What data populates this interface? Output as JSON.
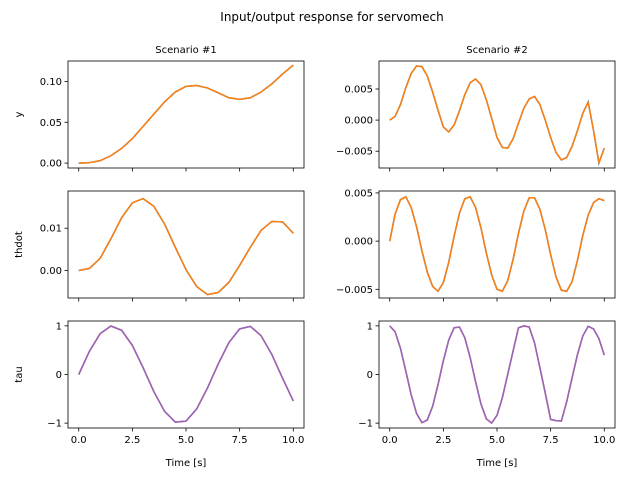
{
  "suptitle": "Input/output response for servomech",
  "colors": {
    "output": "#ff7f0e",
    "output_under": "#1f77b4",
    "input": "#9467bd",
    "input_under": "#d62728",
    "axes": "#000000"
  },
  "chart_data": [
    {
      "type": "line",
      "title": "Scenario #1",
      "xlabel": "",
      "ylabel": "y",
      "xlim": [
        -0.5,
        10.5
      ],
      "ylim": [
        -0.006,
        0.125
      ],
      "xticks": [
        0,
        2.5,
        5,
        7.5,
        10
      ],
      "xticklabels": [
        "",
        "",
        "",
        "",
        ""
      ],
      "yticks": [
        0,
        0.05,
        0.1
      ],
      "yticklabels": [
        "0.00",
        "0.05",
        "0.10"
      ],
      "series": [
        {
          "values": {
            "x": [
              0,
              0.5,
              1,
              1.5,
              2,
              2.5,
              3,
              3.5,
              4,
              4.5,
              5,
              5.5,
              6,
              6.5,
              7,
              7.5,
              8,
              8.5,
              9,
              9.5,
              10
            ],
            "y": [
              0,
              0.0005,
              0.003,
              0.009,
              0.018,
              0.03,
              0.045,
              0.06,
              0.075,
              0.087,
              0.094,
              0.095,
              0.092,
              0.086,
              0.08,
              0.078,
              0.08,
              0.087,
              0.097,
              0.109,
              0.12
            ]
          }
        }
      ]
    },
    {
      "type": "line",
      "title": "Scenario #2",
      "xlabel": "",
      "ylabel": "",
      "xlim": [
        -0.5,
        10.5
      ],
      "ylim": [
        -0.0077,
        0.0095
      ],
      "xticks": [
        0,
        2.5,
        5,
        7.5,
        10
      ],
      "xticklabels": [
        "",
        "",
        "",
        "",
        ""
      ],
      "yticks": [
        -0.005,
        0,
        0.005
      ],
      "yticklabels": [
        "−0.005",
        "0.000",
        "0.005"
      ],
      "series": [
        {
          "values": {
            "x": [
              0,
              0.25,
              0.5,
              0.75,
              1,
              1.25,
              1.5,
              1.75,
              2,
              2.25,
              2.5,
              2.75,
              3,
              3.25,
              3.5,
              3.75,
              4,
              4.25,
              4.5,
              4.75,
              5,
              5.25,
              5.5,
              5.75,
              6,
              6.25,
              6.5,
              6.75,
              7,
              7.25,
              7.5,
              7.75,
              8,
              8.25,
              8.5,
              8.75,
              9,
              9.25,
              9.5,
              9.75,
              10
            ],
            "y": [
              0,
              0.0006,
              0.0025,
              0.0052,
              0.0075,
              0.0087,
              0.0086,
              0.0071,
              0.0045,
              0.0016,
              -0.0011,
              -0.0019,
              -0.0008,
              0.0015,
              0.0041,
              0.006,
              0.0066,
              0.0057,
              0.0033,
              0.0003,
              -0.0028,
              -0.0044,
              -0.0045,
              -0.003,
              -0.0005,
              0.0019,
              0.0034,
              0.0038,
              0.0025,
              0,
              -0.0028,
              -0.0052,
              -0.0064,
              -0.006,
              -0.0042,
              -0.0017,
              0.0011,
              0.0029,
              -0.0017,
              -0.0069,
              -0.0045
            ]
          }
        }
      ]
    },
    {
      "type": "line",
      "title": "",
      "xlabel": "",
      "ylabel": "thdot",
      "xlim": [
        -0.5,
        10.5
      ],
      "ylim": [
        -0.0065,
        0.0188
      ],
      "xticks": [
        0,
        2.5,
        5,
        7.5,
        10
      ],
      "xticklabels": [
        "",
        "",
        "",
        "",
        ""
      ],
      "yticks": [
        0,
        0.01
      ],
      "yticklabels": [
        "0.00",
        "0.01"
      ],
      "series": [
        {
          "values": {
            "x": [
              0,
              0.5,
              1,
              1.5,
              2,
              2.5,
              3,
              3.5,
              4,
              4.5,
              5,
              5.5,
              6,
              6.5,
              7,
              7.5,
              8,
              8.5,
              9,
              9.5,
              10
            ],
            "y": [
              0,
              0.0005,
              0.0029,
              0.0075,
              0.0125,
              0.016,
              0.017,
              0.0152,
              0.011,
              0.0055,
              0.0002,
              -0.0038,
              -0.0057,
              -0.0052,
              -0.0028,
              0.0012,
              0.0055,
              0.0095,
              0.0116,
              0.0115,
              0.0088
            ]
          }
        }
      ]
    },
    {
      "type": "line",
      "title": "",
      "xlabel": "",
      "ylabel": "",
      "xlim": [
        -0.5,
        10.5
      ],
      "ylim": [
        -0.0059,
        0.0052
      ],
      "xticks": [
        0,
        2.5,
        5,
        7.5,
        10
      ],
      "xticklabels": [
        "",
        "",
        "",
        "",
        ""
      ],
      "yticks": [
        -0.005,
        0,
        0.005
      ],
      "yticklabels": [
        "−0.005",
        "0.000",
        "0.005"
      ],
      "series": [
        {
          "values": {
            "x": [
              0,
              0.25,
              0.5,
              0.75,
              1,
              1.25,
              1.5,
              1.75,
              2,
              2.25,
              2.5,
              2.75,
              3,
              3.25,
              3.5,
              3.75,
              4,
              4.25,
              4.5,
              4.75,
              5,
              5.25,
              5.5,
              5.75,
              6,
              6.25,
              6.5,
              6.75,
              7,
              7.25,
              7.5,
              7.75,
              8,
              8.25,
              8.5,
              8.75,
              9,
              9.25,
              9.5,
              9.75,
              10
            ],
            "y": [
              0,
              0.0028,
              0.0043,
              0.0046,
              0.0035,
              0.0015,
              -0.001,
              -0.0032,
              -0.0047,
              -0.0052,
              -0.0043,
              -0.0022,
              0.0005,
              0.0029,
              0.0044,
              0.0046,
              0.0035,
              0.0014,
              -0.0012,
              -0.0035,
              -0.005,
              -0.0052,
              -0.0041,
              -0.0019,
              0.0008,
              0.0031,
              0.0045,
              0.0045,
              0.0033,
              0.0012,
              -0.0014,
              -0.0037,
              -0.0051,
              -0.0052,
              -0.0042,
              -0.002,
              0.0006,
              0.0027,
              0.004,
              0.0044,
              0.0042
            ]
          }
        }
      ]
    },
    {
      "type": "line",
      "title": "",
      "xlabel": "Time [s]",
      "ylabel": "tau",
      "xlim": [
        -0.5,
        10.5
      ],
      "ylim": [
        -1.1,
        1.1
      ],
      "xticks": [
        0,
        2.5,
        5,
        7.5,
        10
      ],
      "xticklabels": [
        "0.0",
        "2.5",
        "5.0",
        "7.5",
        "10.0"
      ],
      "yticks": [
        -1,
        0,
        1
      ],
      "yticklabels": [
        "−1",
        "0",
        "1"
      ],
      "series": [
        {
          "values": {
            "x": [
              0,
              0.5,
              1,
              1.5,
              2,
              2.5,
              3,
              3.5,
              4,
              4.5,
              5,
              5.5,
              6,
              6.5,
              7,
              7.5,
              8,
              8.5,
              9,
              9.5,
              10
            ],
            "y": [
              0,
              0.479,
              0.841,
              0.997,
              0.909,
              0.598,
              0.141,
              -0.351,
              -0.757,
              -0.978,
              -0.959,
              -0.706,
              -0.279,
              0.215,
              0.657,
              0.938,
              0.989,
              0.798,
              0.412,
              -0.075,
              -0.544
            ]
          }
        }
      ]
    },
    {
      "type": "line",
      "title": "",
      "xlabel": "Time [s]",
      "ylabel": "",
      "xlim": [
        -0.5,
        10.5
      ],
      "ylim": [
        -1.1,
        1.1
      ],
      "xticks": [
        0,
        2.5,
        5,
        7.5,
        10
      ],
      "xticklabels": [
        "0.0",
        "2.5",
        "5.0",
        "7.5",
        "10.0"
      ],
      "yticks": [
        -1,
        0,
        1
      ],
      "yticklabels": [
        "−1",
        "0",
        "1"
      ],
      "series": [
        {
          "values": {
            "x": [
              0,
              0.25,
              0.5,
              0.75,
              1,
              1.25,
              1.5,
              1.75,
              2,
              2.25,
              2.5,
              2.75,
              3,
              3.25,
              3.5,
              3.75,
              4,
              4.25,
              4.5,
              4.75,
              5,
              5.25,
              5.5,
              5.75,
              6,
              6.25,
              6.5,
              6.75,
              7,
              7.25,
              7.5,
              7.75,
              8,
              8.25,
              8.5,
              8.75,
              9,
              9.25,
              9.5,
              9.75,
              10
            ],
            "y": [
              1,
              0.878,
              0.54,
              0.071,
              -0.416,
              -0.801,
              -0.99,
              -0.937,
              -0.654,
              -0.211,
              0.284,
              0.707,
              0.96,
              0.976,
              0.754,
              0.347,
              -0.146,
              -0.602,
              -0.911,
              -0.999,
              -0.839,
              -0.476,
              0.004,
              0.483,
              0.96,
              0.999,
              0.977,
              0.65,
              0.137,
              -0.382,
              -0.924,
              -0.948,
              -0.956,
              -0.557,
              -0.068,
              0.409,
              0.793,
              0.991,
              0.937,
              0.737,
              0.4
            ]
          }
        }
      ]
    }
  ]
}
